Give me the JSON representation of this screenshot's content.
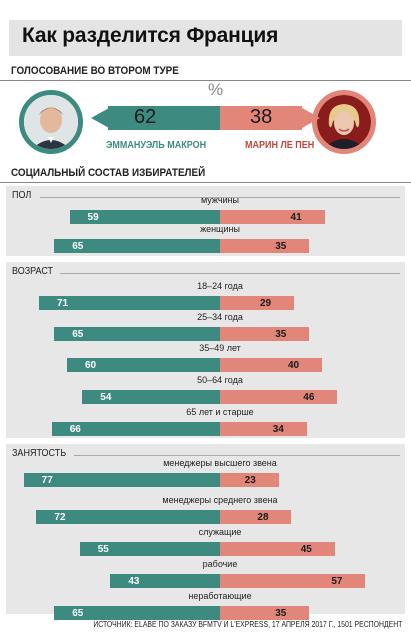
{
  "title": "Как разделится Франция",
  "round_heading": "ГОЛОСОВАНИЕ ВО ВТОРОМ ТУРЕ",
  "percent_symbol": "%",
  "candidates": {
    "left": {
      "name": "ЭММАНУЭЛЬ МАКРОН",
      "value": 62,
      "color": "#3d8b80"
    },
    "right": {
      "name": "МАРИН ЛЕ ПЕН",
      "value": 38,
      "color": "#e2867a"
    }
  },
  "composition_heading": "СОЦИАЛЬНЫЙ СОСТАВ ИЗБИРАТЕЛЕЙ",
  "source": "ИСТОЧНИК: ELABE ПО ЗАКАЗУ BFMTV И L'EXPRESS, 17 АПРЕЛЯ 2017 Г., 1501 РЕСПОНДЕНТ",
  "chart_data": [
    {
      "type": "bar",
      "title": "ПОЛ",
      "categories": [
        "мужчины",
        "женщины"
      ],
      "series": [
        {
          "name": "ЭММАНУЭЛЬ МАКРОН",
          "values": [
            59,
            65
          ]
        },
        {
          "name": "МАРИН ЛЕ ПЕН",
          "values": [
            41,
            35
          ]
        }
      ]
    },
    {
      "type": "bar",
      "title": "ВОЗРАСТ",
      "categories": [
        "18–24 года",
        "25–34 года",
        "35–49 лет",
        "50–64 года",
        "65 лет и старше"
      ],
      "series": [
        {
          "name": "ЭММАНУЭЛЬ МАКРОН",
          "values": [
            71,
            65,
            60,
            54,
            66
          ]
        },
        {
          "name": "МАРИН ЛЕ ПЕН",
          "values": [
            29,
            35,
            40,
            46,
            34
          ]
        }
      ]
    },
    {
      "type": "bar",
      "title": "ЗАНЯТОСТЬ",
      "categories": [
        "менеджеры высшего звена",
        "менеджеры среднего звена",
        "служащие",
        "рабочие",
        "неработающие"
      ],
      "series": [
        {
          "name": "ЭММАНУЭЛЬ МАКРОН",
          "values": [
            77,
            72,
            55,
            43,
            65
          ]
        },
        {
          "name": "МАРИН ЛЕ ПЕН",
          "values": [
            23,
            28,
            45,
            57,
            35
          ]
        }
      ]
    }
  ]
}
